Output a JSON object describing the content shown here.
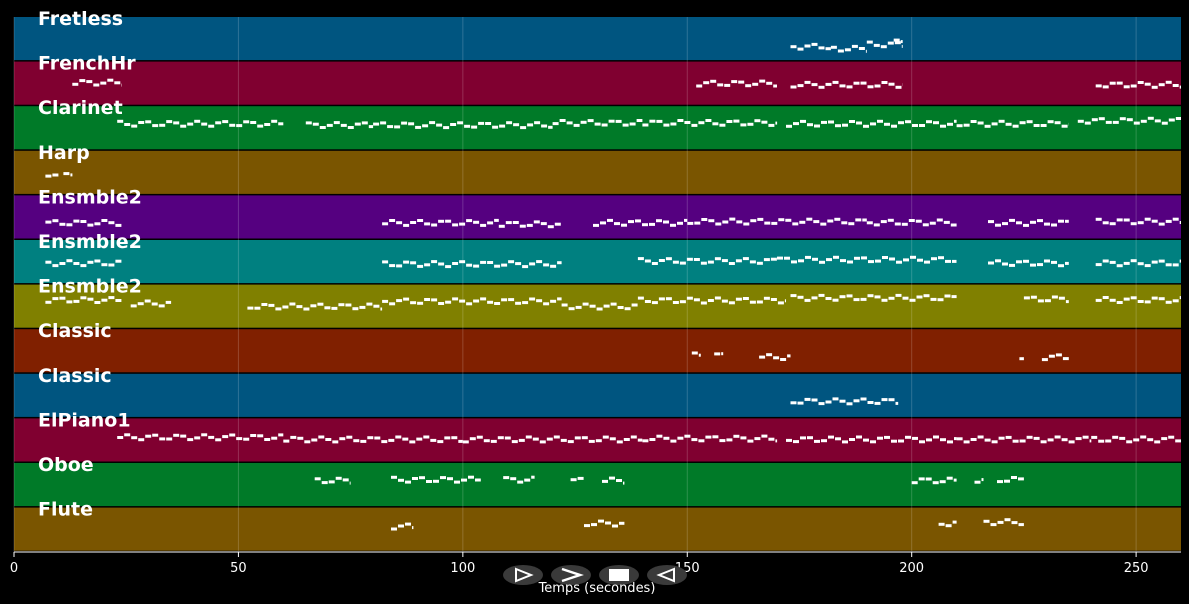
{
  "window": {
    "background": "#000000"
  },
  "tracks": [
    {
      "name": "Fretless",
      "color": "#005580",
      "notes": [
        [
          173,
          182,
          0.7
        ],
        [
          182,
          190,
          0.75
        ],
        [
          190,
          198,
          0.65
        ],
        [
          196,
          198,
          0.6
        ]
      ]
    },
    {
      "name": "FrenchHr",
      "color": "#800030",
      "notes": [
        [
          13,
          24,
          0.5
        ],
        [
          152,
          170,
          0.52
        ],
        [
          173,
          198,
          0.55
        ],
        [
          241,
          260,
          0.55
        ]
      ]
    },
    {
      "name": "Clarinet",
      "color": "#007a28",
      "notes": [
        [
          23,
          60,
          0.42
        ],
        [
          65,
          80,
          0.45
        ],
        [
          80,
          120,
          0.45
        ],
        [
          120,
          140,
          0.4
        ],
        [
          140,
          170,
          0.4
        ],
        [
          172,
          210,
          0.42
        ],
        [
          210,
          235,
          0.42
        ],
        [
          237,
          260,
          0.35
        ]
      ]
    },
    {
      "name": "Harp",
      "color": "#7a5500",
      "notes": [
        [
          7,
          10,
          0.55
        ],
        [
          11,
          13,
          0.52
        ]
      ]
    },
    {
      "name": "Ensmble2",
      "color": "#550080",
      "notes": [
        [
          7,
          24,
          0.65
        ],
        [
          82,
          108,
          0.65
        ],
        [
          108,
          122,
          0.68
        ],
        [
          129,
          150,
          0.65
        ],
        [
          150,
          190,
          0.62
        ],
        [
          190,
          210,
          0.64
        ],
        [
          217,
          235,
          0.65
        ],
        [
          241,
          260,
          0.62
        ]
      ]
    },
    {
      "name": "Ensmble2",
      "color": "#008080",
      "notes": [
        [
          7,
          24,
          0.55
        ],
        [
          82,
          122,
          0.57
        ],
        [
          139,
          170,
          0.5
        ],
        [
          170,
          210,
          0.47
        ],
        [
          217,
          235,
          0.55
        ],
        [
          241,
          260,
          0.55
        ]
      ]
    },
    {
      "name": "Ensmble2",
      "color": "#808000",
      "notes": [
        [
          7,
          24,
          0.37
        ],
        [
          26,
          35,
          0.45
        ],
        [
          52,
          82,
          0.52
        ],
        [
          82,
          122,
          0.4
        ],
        [
          122,
          139,
          0.52
        ],
        [
          139,
          172,
          0.38
        ],
        [
          173,
          210,
          0.32
        ],
        [
          225,
          235,
          0.35
        ],
        [
          241,
          260,
          0.37
        ]
      ]
    },
    {
      "name": "Classic",
      "color": "#802000",
      "notes": [
        [
          151,
          153,
          0.62
        ],
        [
          156,
          158,
          0.62
        ],
        [
          166,
          173,
          0.66
        ],
        [
          224,
          225,
          0.66
        ],
        [
          229,
          235,
          0.66
        ]
      ]
    },
    {
      "name": "Classic",
      "color": "#005580",
      "notes": [
        [
          173,
          197,
          0.65
        ]
      ]
    },
    {
      "name": "ElPiano1",
      "color": "#800030",
      "notes": [
        [
          23,
          60,
          0.45
        ],
        [
          60,
          100,
          0.5
        ],
        [
          100,
          140,
          0.5
        ],
        [
          140,
          170,
          0.48
        ],
        [
          172,
          210,
          0.5
        ],
        [
          210,
          240,
          0.5
        ],
        [
          240,
          260,
          0.5
        ]
      ]
    },
    {
      "name": "Oboe",
      "color": "#007a28",
      "notes": [
        [
          67,
          75,
          0.42
        ],
        [
          84,
          104,
          0.4
        ],
        [
          109,
          116,
          0.4
        ],
        [
          124,
          127,
          0.42
        ],
        [
          131,
          136,
          0.42
        ],
        [
          200,
          210,
          0.42
        ],
        [
          214,
          216,
          0.4
        ],
        [
          219,
          225,
          0.4
        ]
      ]
    },
    {
      "name": "Flute",
      "color": "#7a5500",
      "notes": [
        [
          84,
          89,
          0.45
        ],
        [
          127,
          136,
          0.38
        ],
        [
          206,
          210,
          0.38
        ],
        [
          216,
          225,
          0.35
        ]
      ]
    }
  ],
  "axis": {
    "xmin": 0,
    "xmax": 260,
    "ticks": [
      0,
      50,
      100,
      150,
      200,
      250
    ],
    "tick_labels": [
      "0",
      "50",
      "100",
      "150",
      "200",
      "250"
    ],
    "title": "Temps (secondes)",
    "grid": true
  },
  "controls": [
    {
      "name": "play-outline-button",
      "icon": "play-outline-icon"
    },
    {
      "name": "forward-button",
      "icon": "chevron-right-icon"
    },
    {
      "name": "stop-button",
      "icon": "stop-icon"
    },
    {
      "name": "back-button",
      "icon": "play-back-icon"
    }
  ]
}
